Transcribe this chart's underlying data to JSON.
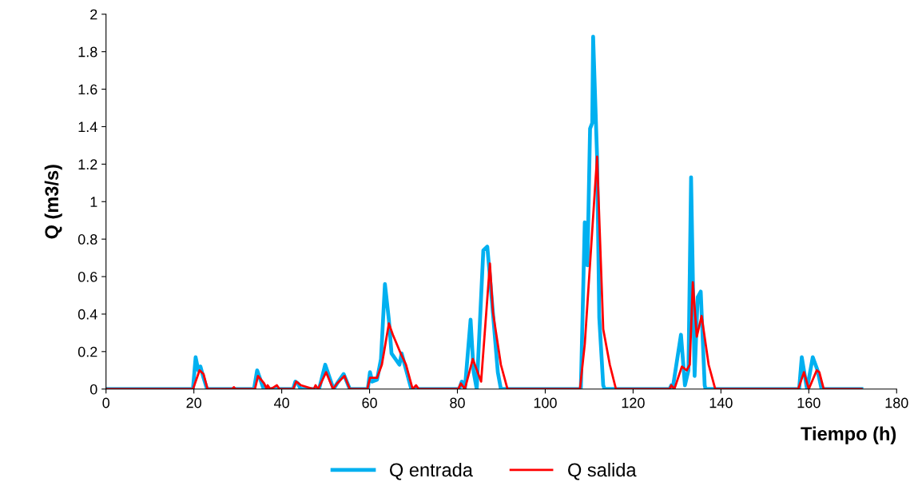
{
  "chart_data": {
    "type": "line",
    "xlabel": "Tiempo (h)",
    "ylabel": "Q (m3/s)",
    "xlim": [
      0,
      180
    ],
    "xticks": [
      0,
      20,
      40,
      60,
      80,
      100,
      120,
      140,
      160,
      180
    ],
    "ylim": [
      0,
      2
    ],
    "yticks": [
      0,
      0.2,
      0.4,
      0.6,
      0.8,
      1,
      1.2,
      1.4,
      1.6,
      1.8,
      2
    ],
    "grid": false,
    "legend": "bottom",
    "marker": "none",
    "line_style": "solid",
    "series": [
      {
        "name": "Q entrada",
        "color": "#00b0f0",
        "x": [
          0,
          19.8,
          20.4,
          21,
          21.5,
          22.2,
          23,
          33.7,
          34.4,
          35.3,
          35.9,
          42.6,
          43.1,
          43.7,
          44.3,
          48.5,
          49.9,
          51.2,
          51.8,
          52.6,
          54.1,
          55.5,
          59.6,
          60.1,
          60.6,
          61.7,
          62.6,
          63.5,
          64.4,
          65.0,
          66.8,
          67.3,
          69.5,
          80.4,
          81,
          81.7,
          83.0,
          83.7,
          84.4,
          85.9,
          86.8,
          87.4,
          89.2,
          89.9,
          108.1,
          109.0,
          109.6,
          110.2,
          110.7,
          110.9,
          111.8,
          112.3,
          113.2,
          113.5,
          128.3,
          128.7,
          129,
          130.9,
          131.8,
          132.6,
          133.2,
          134.0,
          134.7,
          135.4,
          136.3,
          136.5,
          157.8,
          158.4,
          159.6,
          160.9,
          162,
          162.9,
          172
        ],
        "values": [
          0,
          0,
          0.17,
          0.1,
          0.12,
          0.06,
          0,
          0,
          0.1,
          0.04,
          0,
          0,
          0.04,
          0.03,
          0,
          0,
          0.13,
          0.04,
          0,
          0.03,
          0.08,
          0,
          0,
          0.09,
          0.04,
          0.05,
          0.16,
          0.56,
          0.37,
          0.19,
          0.13,
          0.19,
          0,
          0,
          0.04,
          0,
          0.37,
          0.09,
          0,
          0.74,
          0.76,
          0.6,
          0.09,
          0,
          0,
          0.89,
          0.66,
          1.39,
          1.42,
          1.88,
          1.24,
          0.38,
          0.02,
          0,
          0,
          0.02,
          0,
          0.29,
          0.02,
          0.1,
          1.13,
          0.07,
          0.49,
          0.52,
          0.02,
          0,
          0,
          0.17,
          0,
          0.17,
          0.1,
          0,
          0
        ]
      },
      {
        "name": "Q salida",
        "color": "#ff0000",
        "x": [
          0,
          19.8,
          21.3,
          22.2,
          23.1,
          28.7,
          29.1,
          29.5,
          33.9,
          34.6,
          36,
          36.6,
          36.8,
          37.4,
          38.2,
          38.9,
          39.5,
          42.6,
          43.3,
          44.4,
          47.3,
          47.7,
          48.3,
          50.1,
          51.7,
          52.6,
          54.3,
          55.5,
          59.5,
          60.1,
          61.7,
          62.8,
          64.4,
          65.3,
          67.1,
          68.3,
          69.8,
          70.6,
          71.2,
          80.2,
          80.8,
          81.7,
          83.5,
          85.4,
          87.4,
          88.1,
          89.9,
          91.4,
          107.9,
          109,
          111.8,
          113.2,
          114.7,
          116.1,
          128.3,
          128.7,
          129.4,
          131.1,
          132.2,
          132.9,
          133.6,
          134.5,
          135.6,
          137.2,
          138.7,
          157.6,
          158.9,
          160,
          161.8,
          162.4,
          163.4,
          172
        ],
        "values": [
          0,
          0,
          0.1,
          0.08,
          0,
          0,
          0.01,
          0,
          0,
          0.07,
          0.03,
          0,
          0.02,
          0,
          0.01,
          0.02,
          0,
          0,
          0.04,
          0.02,
          0,
          0.02,
          0,
          0.09,
          0,
          0.03,
          0.07,
          0,
          0,
          0.06,
          0.06,
          0.13,
          0.35,
          0.29,
          0.19,
          0.13,
          0,
          0.02,
          0,
          0,
          0.03,
          0,
          0.16,
          0.04,
          0.67,
          0.41,
          0.13,
          0,
          0,
          0.24,
          1.24,
          0.32,
          0.13,
          0,
          0,
          0.02,
          0,
          0.12,
          0.1,
          0.13,
          0.57,
          0.28,
          0.39,
          0.13,
          0,
          0,
          0.09,
          0,
          0.1,
          0.09,
          0,
          0
        ]
      }
    ]
  }
}
